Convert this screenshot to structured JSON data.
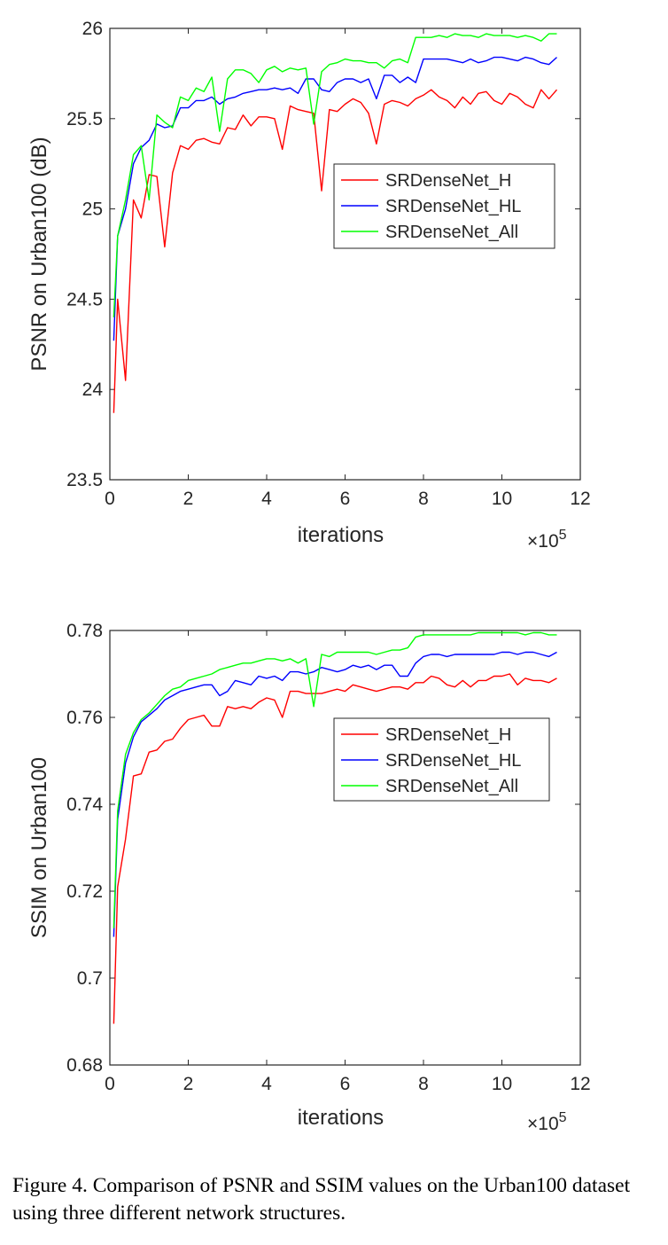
{
  "caption": "Figure 4. Comparison of PSNR and SSIM values on the Urban100 dataset using three different network structures.",
  "colors": {
    "H": "#ff0000",
    "HL": "#0000ff",
    "All": "#00ff00",
    "axis": "#262626"
  },
  "chart_data": [
    {
      "type": "line",
      "xlabel": "iterations",
      "ylabel": "PSNR on Urban100 (dB)",
      "x_multiplier": "×10^5",
      "xlim": [
        0,
        12
      ],
      "ylim": [
        23.5,
        26
      ],
      "xticks": [
        "0",
        "2",
        "4",
        "6",
        "8",
        "10",
        "12"
      ],
      "yticks": [
        "23.5",
        "24",
        "24.5",
        "25",
        "25.5",
        "26"
      ],
      "legend_position": "center-right",
      "x": [
        0.1,
        0.2,
        0.4,
        0.6,
        0.8,
        1.0,
        1.2,
        1.4,
        1.6,
        1.8,
        2.0,
        2.2,
        2.4,
        2.6,
        2.8,
        3.0,
        3.2,
        3.4,
        3.6,
        3.8,
        4.0,
        4.2,
        4.4,
        4.6,
        4.8,
        5.0,
        5.2,
        5.4,
        5.6,
        5.8,
        6.0,
        6.2,
        6.4,
        6.6,
        6.8,
        7.0,
        7.2,
        7.4,
        7.6,
        7.8,
        8.0,
        8.2,
        8.4,
        8.6,
        8.8,
        9.0,
        9.2,
        9.4,
        9.6,
        9.8,
        10.0,
        10.2,
        10.4,
        10.6,
        10.8,
        11.0,
        11.2,
        11.4
      ],
      "series": [
        {
          "name": "SRDenseNet_H",
          "color": "#ff0000",
          "values": [
            23.87,
            24.5,
            24.05,
            25.05,
            24.95,
            25.19,
            25.18,
            24.79,
            25.2,
            25.35,
            25.33,
            25.38,
            25.39,
            25.37,
            25.36,
            25.45,
            25.44,
            25.52,
            25.46,
            25.51,
            25.51,
            25.5,
            25.33,
            25.57,
            25.55,
            25.54,
            25.53,
            25.1,
            25.55,
            25.54,
            25.58,
            25.61,
            25.59,
            25.53,
            25.36,
            25.58,
            25.6,
            25.59,
            25.57,
            25.61,
            25.63,
            25.66,
            25.62,
            25.6,
            25.56,
            25.62,
            25.58,
            25.64,
            25.65,
            25.6,
            25.58,
            25.64,
            25.62,
            25.58,
            25.56,
            25.66,
            25.61,
            25.66
          ]
        },
        {
          "name": "SRDenseNet_HL",
          "color": "#0000ff",
          "values": [
            24.27,
            24.85,
            25.0,
            25.25,
            25.34,
            25.38,
            25.47,
            25.45,
            25.46,
            25.56,
            25.56,
            25.6,
            25.6,
            25.62,
            25.58,
            25.61,
            25.62,
            25.64,
            25.65,
            25.66,
            25.66,
            25.67,
            25.66,
            25.67,
            25.64,
            25.72,
            25.72,
            25.66,
            25.65,
            25.7,
            25.72,
            25.72,
            25.7,
            25.72,
            25.61,
            25.74,
            25.74,
            25.7,
            25.73,
            25.7,
            25.83,
            25.83,
            25.83,
            25.83,
            25.82,
            25.81,
            25.83,
            25.81,
            25.82,
            25.84,
            25.84,
            25.83,
            25.82,
            25.84,
            25.83,
            25.81,
            25.8,
            25.84
          ]
        },
        {
          "name": "SRDenseNet_All",
          "color": "#00ff00",
          "values": [
            24.4,
            24.85,
            25.05,
            25.3,
            25.35,
            25.05,
            25.52,
            25.48,
            25.45,
            25.62,
            25.6,
            25.67,
            25.65,
            25.73,
            25.43,
            25.72,
            25.77,
            25.77,
            25.75,
            25.7,
            25.77,
            25.79,
            25.76,
            25.78,
            25.77,
            25.78,
            25.47,
            25.76,
            25.8,
            25.81,
            25.83,
            25.82,
            25.82,
            25.81,
            25.81,
            25.78,
            25.82,
            25.83,
            25.81,
            25.95,
            25.95,
            25.95,
            25.96,
            25.95,
            25.97,
            25.96,
            25.96,
            25.95,
            25.97,
            25.96,
            25.96,
            25.96,
            25.95,
            25.96,
            25.95,
            25.93,
            25.97,
            25.97
          ]
        }
      ]
    },
    {
      "type": "line",
      "xlabel": "iterations",
      "ylabel": "SSIM on Urban100",
      "x_multiplier": "×10^5",
      "xlim": [
        0,
        12
      ],
      "ylim": [
        0.68,
        0.78
      ],
      "xticks": [
        "0",
        "2",
        "4",
        "6",
        "8",
        "10",
        "12"
      ],
      "yticks": [
        "0.68",
        "0.7",
        "0.72",
        "0.74",
        "0.76",
        "0.78"
      ],
      "legend_position": "upper-right",
      "x": [
        0.1,
        0.2,
        0.4,
        0.6,
        0.8,
        1.0,
        1.2,
        1.4,
        1.6,
        1.8,
        2.0,
        2.2,
        2.4,
        2.6,
        2.8,
        3.0,
        3.2,
        3.4,
        3.6,
        3.8,
        4.0,
        4.2,
        4.4,
        4.6,
        4.8,
        5.0,
        5.2,
        5.4,
        5.6,
        5.8,
        6.0,
        6.2,
        6.4,
        6.6,
        6.8,
        7.0,
        7.2,
        7.4,
        7.6,
        7.8,
        8.0,
        8.2,
        8.4,
        8.6,
        8.8,
        9.0,
        9.2,
        9.4,
        9.6,
        9.8,
        10.0,
        10.2,
        10.4,
        10.6,
        10.8,
        11.0,
        11.2,
        11.4
      ],
      "series": [
        {
          "name": "SRDenseNet_H",
          "color": "#ff0000",
          "values": [
            0.6895,
            0.721,
            0.732,
            0.7465,
            0.747,
            0.752,
            0.7525,
            0.7545,
            0.755,
            0.7575,
            0.7595,
            0.76,
            0.7605,
            0.758,
            0.758,
            0.7625,
            0.762,
            0.7625,
            0.762,
            0.7635,
            0.7645,
            0.764,
            0.76,
            0.766,
            0.766,
            0.7655,
            0.7655,
            0.7655,
            0.766,
            0.7665,
            0.766,
            0.7675,
            0.767,
            0.7665,
            0.766,
            0.7665,
            0.767,
            0.767,
            0.7665,
            0.768,
            0.768,
            0.7695,
            0.769,
            0.7675,
            0.767,
            0.7685,
            0.767,
            0.7685,
            0.7685,
            0.7695,
            0.7695,
            0.77,
            0.7675,
            0.769,
            0.7685,
            0.7685,
            0.768,
            0.769
          ]
        },
        {
          "name": "SRDenseNet_HL",
          "color": "#0000ff",
          "values": [
            0.7095,
            0.7365,
            0.7495,
            0.7555,
            0.759,
            0.7605,
            0.762,
            0.764,
            0.765,
            0.766,
            0.7665,
            0.767,
            0.7675,
            0.7675,
            0.765,
            0.766,
            0.7685,
            0.768,
            0.7675,
            0.7695,
            0.769,
            0.7695,
            0.7685,
            0.7705,
            0.7705,
            0.77,
            0.7705,
            0.7715,
            0.771,
            0.7705,
            0.771,
            0.772,
            0.7715,
            0.772,
            0.771,
            0.772,
            0.772,
            0.7695,
            0.7695,
            0.7725,
            0.774,
            0.7745,
            0.7745,
            0.774,
            0.7745,
            0.7745,
            0.7745,
            0.7745,
            0.7745,
            0.7745,
            0.775,
            0.775,
            0.7745,
            0.775,
            0.775,
            0.7745,
            0.774,
            0.775
          ]
        },
        {
          "name": "SRDenseNet_All",
          "color": "#00ff00",
          "values": [
            0.7115,
            0.7385,
            0.7515,
            0.7565,
            0.7595,
            0.761,
            0.763,
            0.765,
            0.7665,
            0.767,
            0.7685,
            0.769,
            0.7695,
            0.77,
            0.771,
            0.7715,
            0.772,
            0.7725,
            0.7725,
            0.773,
            0.7735,
            0.7735,
            0.773,
            0.7735,
            0.7725,
            0.7735,
            0.7625,
            0.7745,
            0.774,
            0.775,
            0.775,
            0.775,
            0.775,
            0.775,
            0.7745,
            0.775,
            0.7755,
            0.7755,
            0.776,
            0.7785,
            0.779,
            0.779,
            0.779,
            0.779,
            0.779,
            0.779,
            0.779,
            0.7795,
            0.7795,
            0.7795,
            0.7795,
            0.7795,
            0.7795,
            0.779,
            0.7795,
            0.7795,
            0.779,
            0.779
          ]
        }
      ]
    }
  ]
}
